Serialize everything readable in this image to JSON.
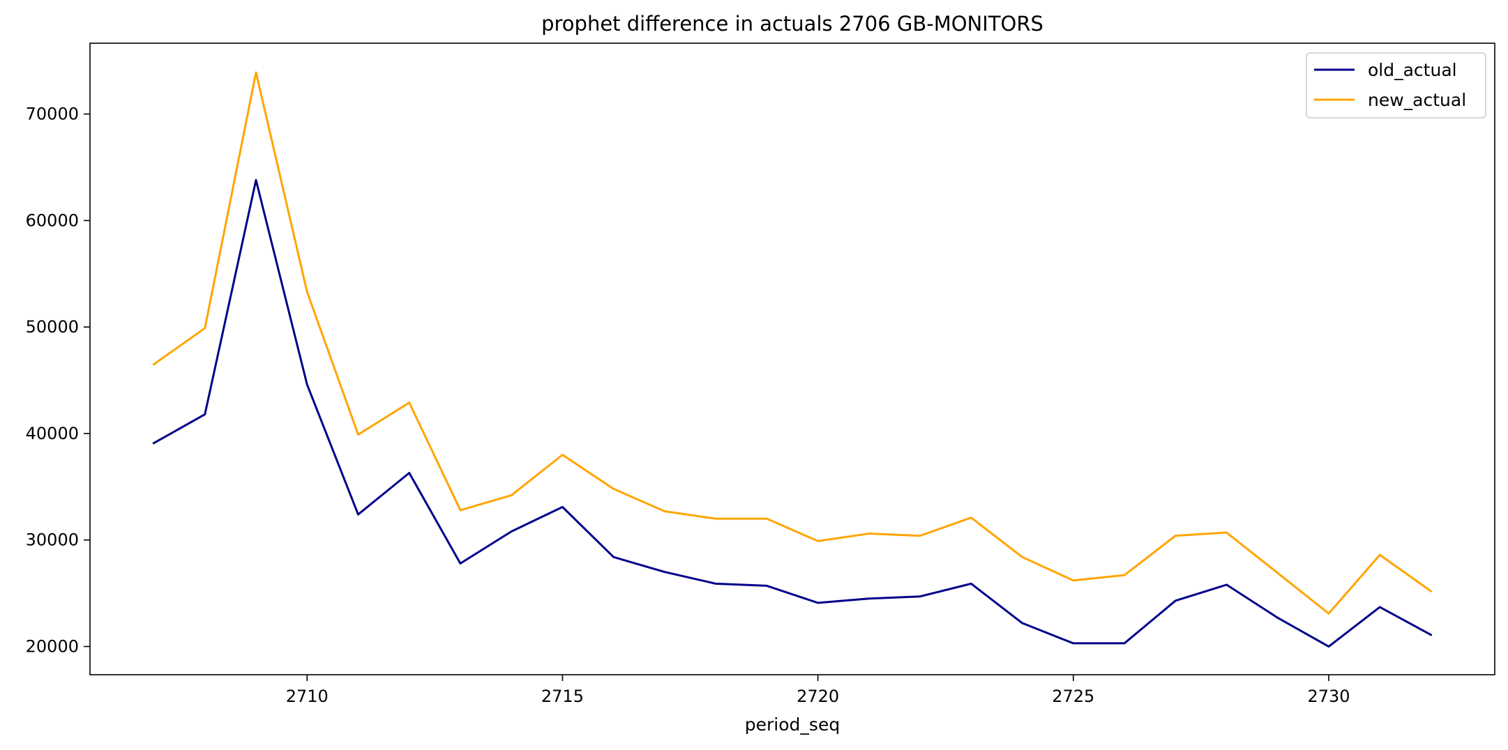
{
  "chart_data": {
    "type": "line",
    "title": "prophet difference in actuals 2706 GB-MONITORS",
    "xlabel": "period_seq",
    "ylabel": "",
    "xlim": [
      2705.75,
      2733.25
    ],
    "ylim": [
      17350,
      76650
    ],
    "xticks": [
      2710,
      2715,
      2720,
      2725,
      2730
    ],
    "yticks": [
      20000,
      30000,
      40000,
      50000,
      60000,
      70000
    ],
    "grid": false,
    "legend_position": "top-right",
    "x": [
      2707,
      2708,
      2709,
      2710,
      2711,
      2712,
      2713,
      2714,
      2715,
      2716,
      2717,
      2718,
      2719,
      2720,
      2721,
      2722,
      2723,
      2724,
      2725,
      2726,
      2727,
      2728,
      2729,
      2730,
      2731,
      2732
    ],
    "series": [
      {
        "name": "old_actual",
        "color": "#00008b",
        "values": [
          39100,
          41800,
          63800,
          44600,
          32400,
          36300,
          27800,
          30800,
          33100,
          28400,
          27000,
          25900,
          25700,
          24100,
          24500,
          24700,
          25900,
          22200,
          20300,
          20300,
          24300,
          25800,
          22700,
          20000,
          23700,
          21100
        ]
      },
      {
        "name": "new_actual",
        "color": "#ffa500",
        "values": [
          46500,
          49900,
          73900,
          53300,
          39900,
          42900,
          32800,
          34200,
          38000,
          34800,
          32700,
          32000,
          32000,
          29900,
          30600,
          30400,
          32100,
          28400,
          26200,
          26700,
          30400,
          30700,
          26900,
          23100,
          28600,
          25200
        ]
      }
    ]
  }
}
